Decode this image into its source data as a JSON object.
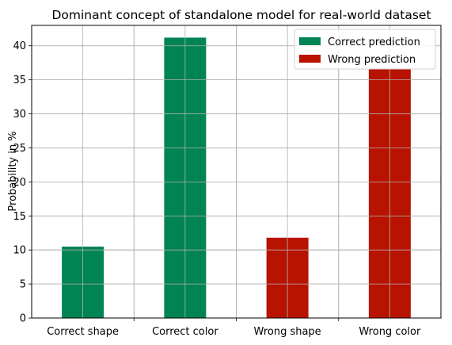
{
  "chart_data": {
    "type": "bar",
    "title": "Dominant concept of standalone model for real-world dataset",
    "xlabel": "",
    "ylabel": "Probability in %",
    "ylim": [
      0,
      43
    ],
    "yticks": [
      0,
      5,
      10,
      15,
      20,
      25,
      30,
      35,
      40
    ],
    "categories": [
      "Correct shape",
      "Correct color",
      "Wrong shape",
      "Wrong color"
    ],
    "series": [
      {
        "name": "Correct prediction",
        "color": "#008453",
        "values": [
          10.5,
          41.2,
          null,
          null
        ]
      },
      {
        "name": "Wrong prediction",
        "color": "#b81300",
        "values": [
          null,
          null,
          11.8,
          36.6
        ]
      }
    ],
    "grid": true,
    "legend_position": "top-right"
  }
}
